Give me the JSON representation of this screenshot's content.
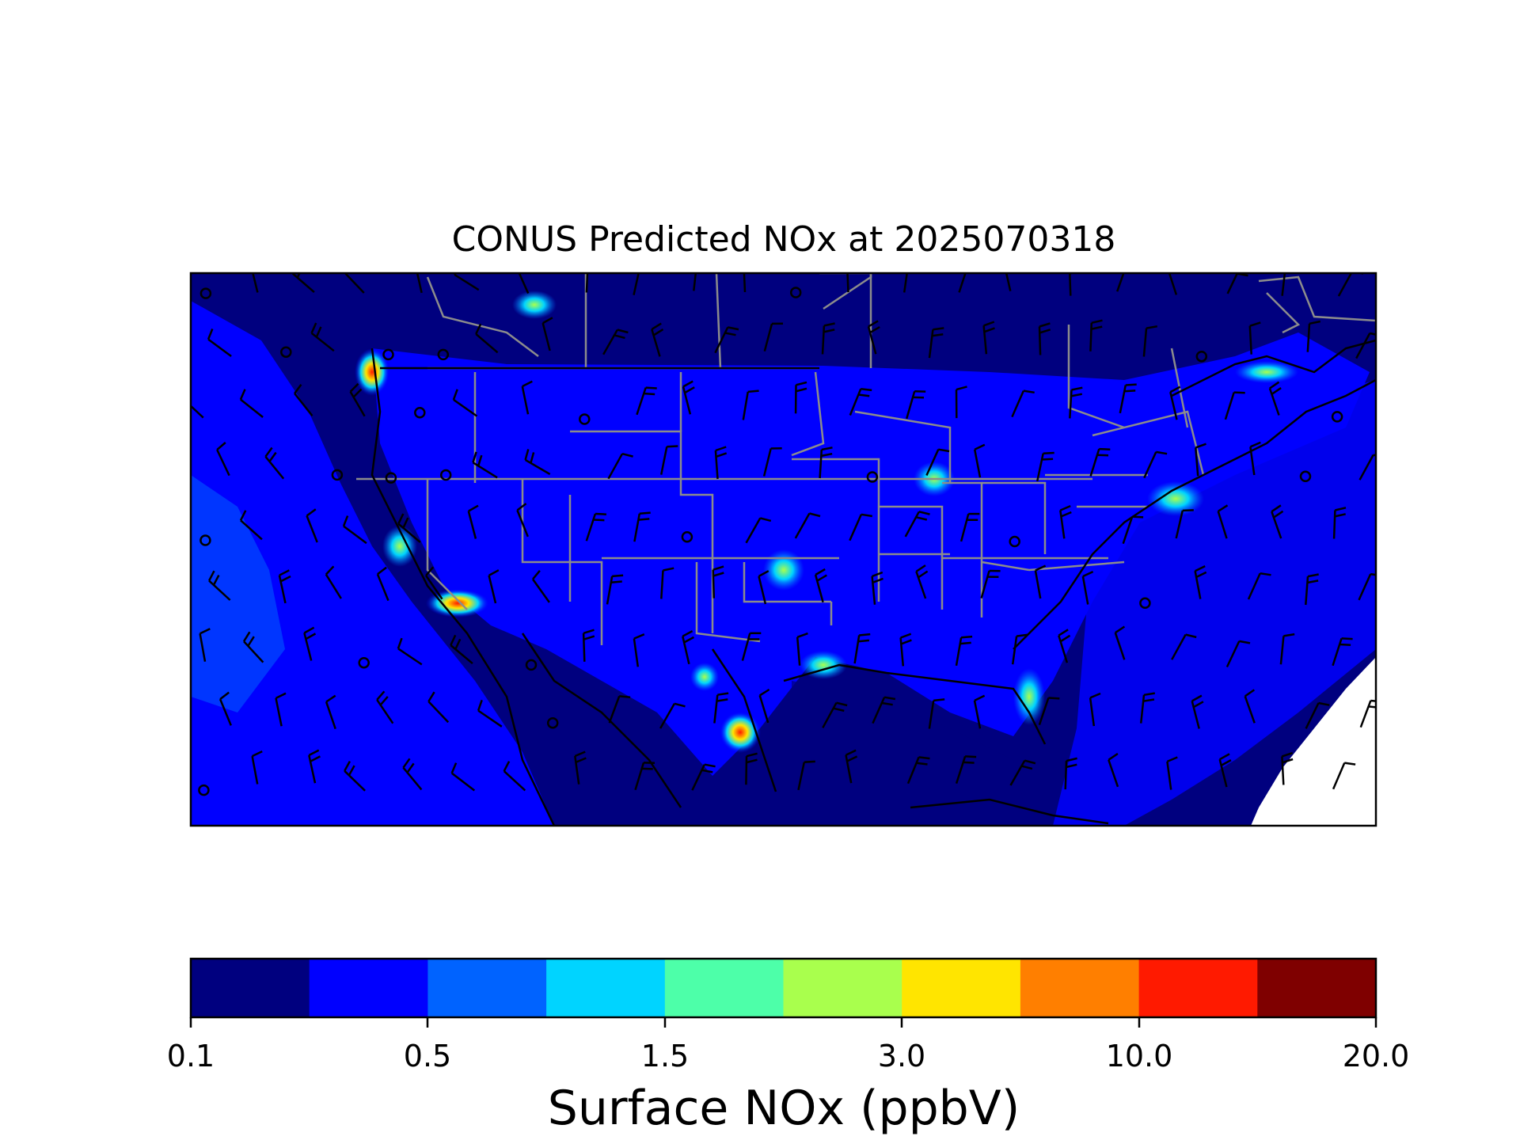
{
  "title": "CONUS Predicted NOx at 2025070318",
  "colorbar": {
    "label": "Surface NOx (ppbV)",
    "tick_labels": [
      "0.1",
      "0.5",
      "1.5",
      "3.0",
      "10.0",
      "20.0"
    ],
    "bins": [
      {
        "color": "#00007f"
      },
      {
        "color": "#0000ff"
      },
      {
        "color": "#0063ff"
      },
      {
        "color": "#00d4ff"
      },
      {
        "color": "#4dffa9"
      },
      {
        "color": "#a9ff4d"
      },
      {
        "color": "#ffe500"
      },
      {
        "color": "#ff7f00"
      },
      {
        "color": "#ff1a00"
      },
      {
        "color": "#7f0000"
      }
    ]
  },
  "map": {
    "ocean_color": "#00007f",
    "state_border_color": "#8c8c8c",
    "coast_color": "#000000",
    "missing_color": "#ffffff"
  }
}
